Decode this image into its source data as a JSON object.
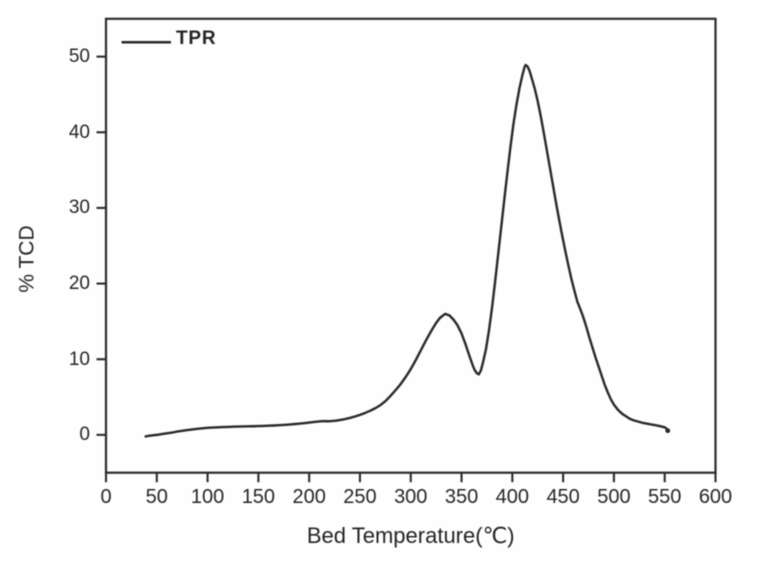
{
  "figure": {
    "background": "#fefefe"
  },
  "colors": {
    "line": "#282828",
    "frame": "#2b2b2b",
    "text": "#242424"
  },
  "chart_data": {
    "type": "line",
    "title": "",
    "xlabel": "Bed Temperature(℃)",
    "ylabel": "% TCD",
    "xlim": [
      0,
      600
    ],
    "ylim": [
      -5,
      55
    ],
    "xticks": [
      0,
      50,
      100,
      150,
      200,
      250,
      300,
      350,
      400,
      450,
      500,
      550,
      600
    ],
    "yticks": [
      0,
      10,
      20,
      30,
      40,
      50
    ],
    "grid": false,
    "legend_position": "top-left",
    "legend": {
      "label": "TPR",
      "color": "#282828"
    },
    "series": [
      {
        "name": "TPR",
        "color": "#282828",
        "x": [
          39,
          42,
          46,
          50,
          55,
          60,
          65,
          70,
          75,
          80,
          85,
          90,
          95,
          100,
          105,
          110,
          115,
          120,
          125,
          130,
          135,
          140,
          145,
          150,
          155,
          160,
          165,
          170,
          175,
          180,
          185,
          190,
          195,
          200,
          205,
          210,
          214,
          218,
          222,
          226,
          230,
          235,
          240,
          245,
          250,
          255,
          260,
          265,
          270,
          275,
          280,
          285,
          290,
          295,
          300,
          305,
          310,
          315,
          320,
          325,
          329,
          334,
          338,
          342,
          346,
          350,
          354,
          358,
          361,
          363,
          365,
          367,
          369,
          371,
          374,
          377,
          380,
          383,
          386,
          389,
          392,
          395,
          398,
          401,
          404,
          407,
          410,
          412,
          413,
          415,
          417,
          419,
          422,
          425,
          428,
          431,
          434,
          437,
          440,
          443,
          446,
          449,
          452,
          455,
          458,
          461,
          464,
          467,
          470,
          473,
          476,
          479,
          482,
          485,
          488,
          491,
          494,
          497,
          500,
          504,
          508,
          512,
          516,
          520,
          524,
          528,
          532,
          536,
          540,
          544,
          547,
          550,
          552,
          553
        ],
        "y": [
          -0.2,
          -0.13,
          -0.06,
          0.0,
          0.1,
          0.2,
          0.31,
          0.43,
          0.53,
          0.63,
          0.72,
          0.8,
          0.87,
          0.93,
          0.97,
          1.0,
          1.03,
          1.05,
          1.08,
          1.1,
          1.12,
          1.13,
          1.14,
          1.16,
          1.18,
          1.21,
          1.24,
          1.28,
          1.32,
          1.37,
          1.42,
          1.48,
          1.55,
          1.63,
          1.71,
          1.78,
          1.82,
          1.8,
          1.83,
          1.88,
          1.96,
          2.08,
          2.24,
          2.43,
          2.65,
          2.9,
          3.18,
          3.52,
          3.92,
          4.45,
          5.15,
          5.9,
          6.7,
          7.65,
          8.7,
          9.9,
          11.2,
          12.5,
          13.7,
          14.8,
          15.5,
          16.0,
          15.8,
          15.25,
          14.5,
          13.4,
          11.95,
          10.35,
          9.2,
          8.55,
          8.15,
          8.0,
          8.5,
          9.5,
          11.3,
          13.8,
          16.8,
          20.2,
          23.8,
          27.4,
          31.0,
          34.5,
          37.9,
          41.0,
          43.6,
          45.8,
          47.6,
          48.6,
          48.9,
          48.7,
          48.1,
          47.2,
          45.8,
          44.1,
          42.1,
          39.9,
          37.6,
          35.3,
          33.0,
          30.7,
          28.5,
          26.4,
          24.4,
          22.5,
          20.7,
          19.1,
          17.6,
          16.6,
          15.5,
          14.2,
          12.8,
          11.5,
          10.2,
          9.0,
          7.8,
          6.6,
          5.6,
          4.7,
          4.0,
          3.3,
          2.8,
          2.45,
          2.1,
          1.9,
          1.75,
          1.6,
          1.5,
          1.4,
          1.3,
          1.2,
          1.1,
          1.0,
          0.8,
          0.55
        ]
      }
    ]
  }
}
